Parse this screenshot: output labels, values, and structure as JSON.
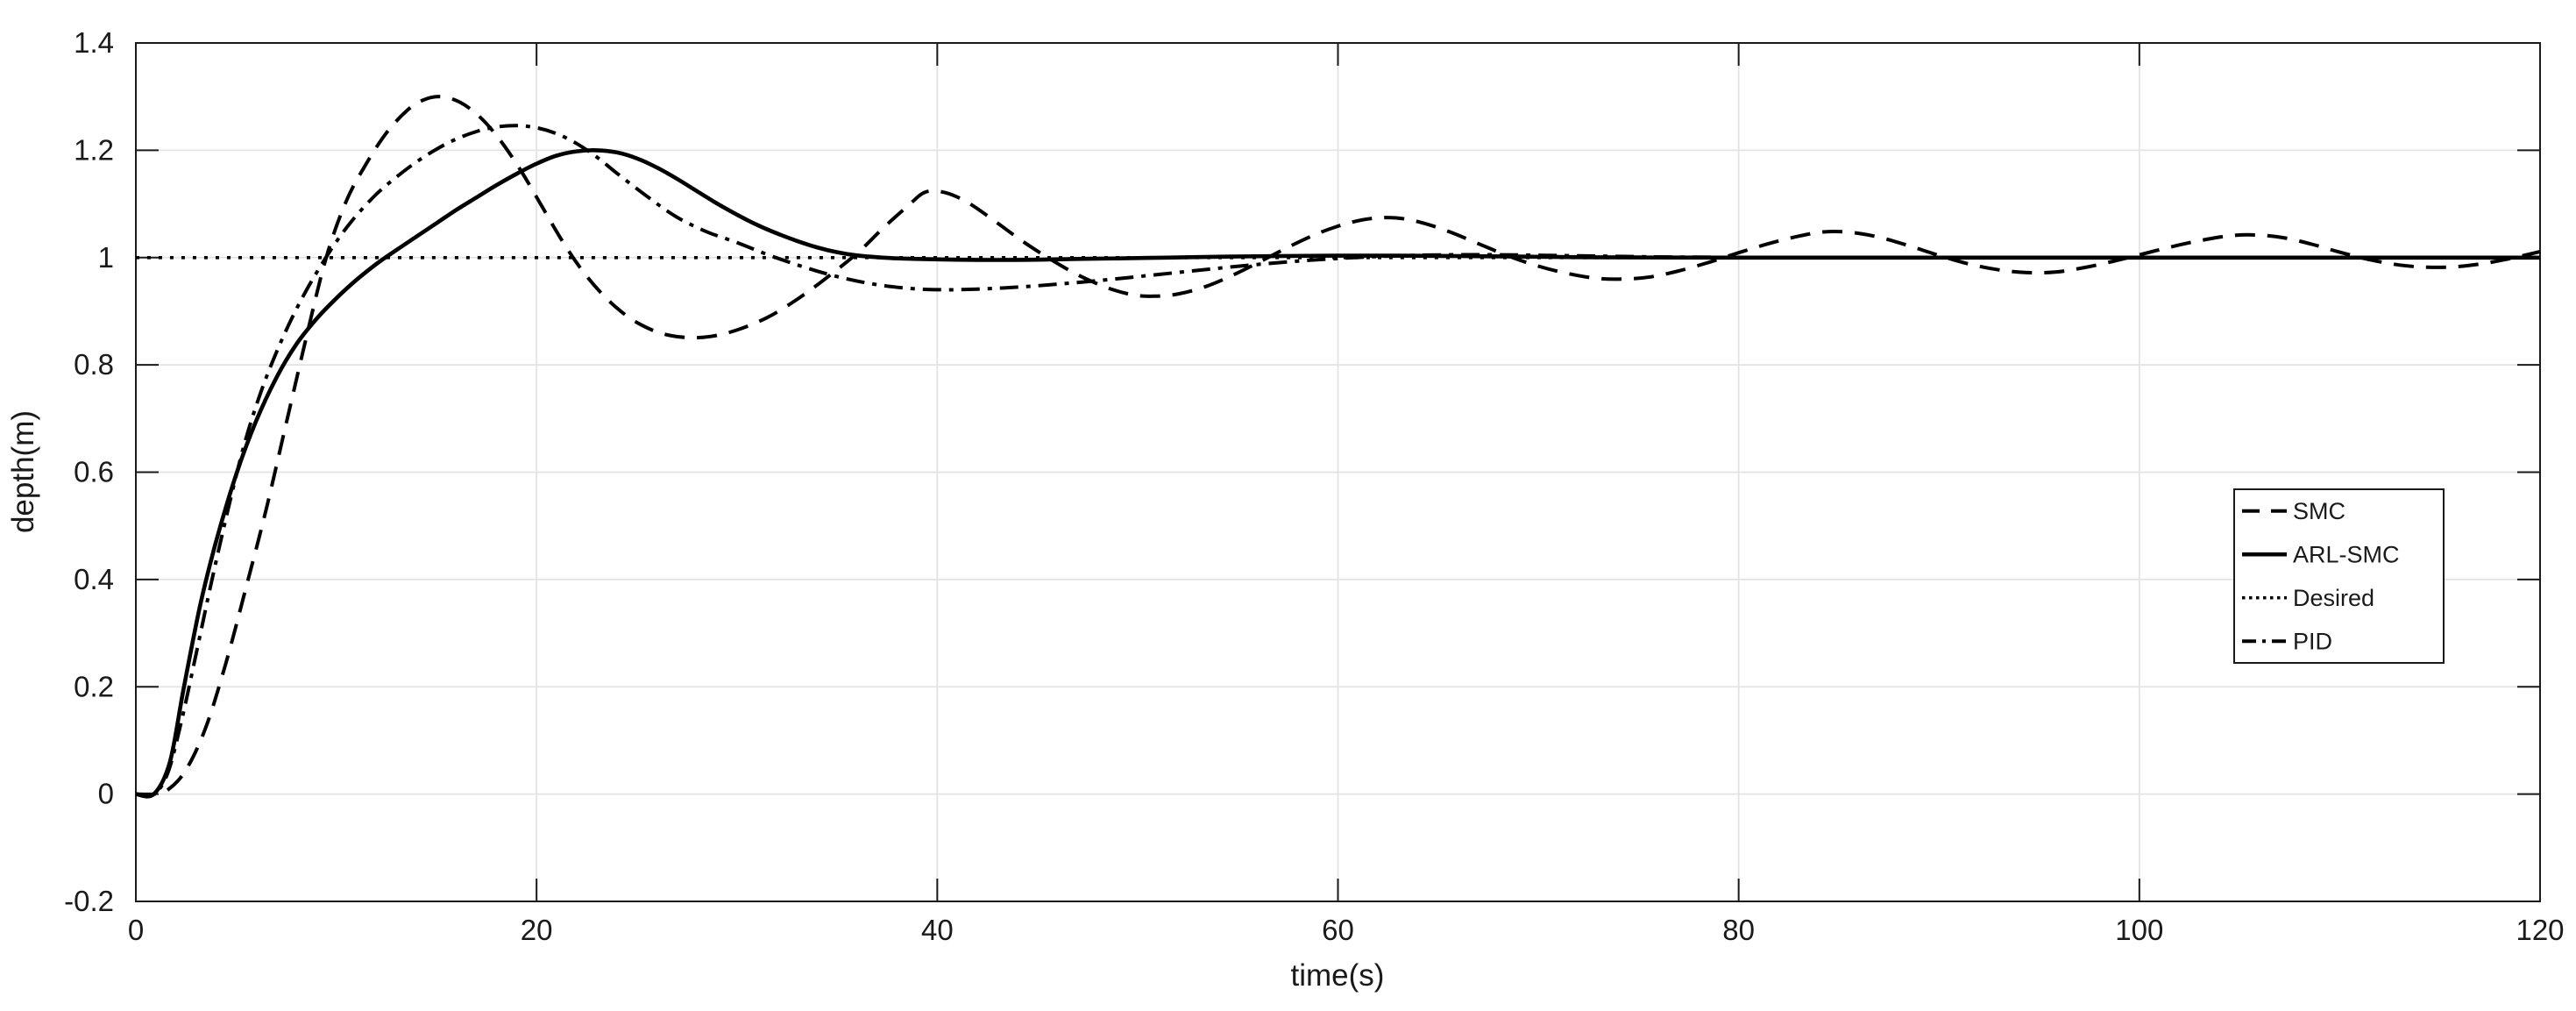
{
  "figure": {
    "background": "#ffffff"
  },
  "colors": {
    "curve": "#000000",
    "grid": "#e3e3e3",
    "axis": "#1a1a1a",
    "tick": "#1a1a1a",
    "label": "#1a1a1a",
    "legend_border": "#1a1a1a",
    "legend_bg": "#ffffff"
  },
  "chart_data": {
    "type": "line",
    "title": "",
    "xlabel": "time(s)",
    "ylabel": "depth(m)",
    "xlim": [
      0,
      120
    ],
    "ylim": [
      -0.2,
      1.4
    ],
    "xticks": [
      0,
      20,
      40,
      60,
      80,
      100,
      120
    ],
    "xtick_labels": [
      "0",
      "20",
      "40",
      "60",
      "80",
      "100",
      "120"
    ],
    "yticks": [
      -0.2,
      0,
      0.2,
      0.4,
      0.6,
      0.8,
      1,
      1.2,
      1.4
    ],
    "ytick_labels": [
      "-0.2",
      "0",
      "0.2",
      "0.4",
      "0.6",
      "0.8",
      "1",
      "1.2",
      "1.4"
    ],
    "grid": true,
    "box": true,
    "legend": {
      "position": "right-center",
      "entries": [
        "SMC",
        "ARL-SMC",
        "Desired",
        "PID"
      ]
    },
    "series": [
      {
        "name": "SMC",
        "line_style": "dashed",
        "color": "#000000",
        "points": [
          [
            0,
            0
          ],
          [
            0.9,
            0
          ],
          [
            1.6,
            0.008
          ],
          [
            2.5,
            0.045
          ],
          [
            3.5,
            0.125
          ],
          [
            4.5,
            0.245
          ],
          [
            5.5,
            0.385
          ],
          [
            6.5,
            0.53
          ],
          [
            7.5,
            0.69
          ],
          [
            8.5,
            0.85
          ],
          [
            9.5,
            1.0
          ],
          [
            10.5,
            1.105
          ],
          [
            11.5,
            1.175
          ],
          [
            12.5,
            1.232
          ],
          [
            13.5,
            1.273
          ],
          [
            14.3,
            1.293
          ],
          [
            15.2,
            1.3
          ],
          [
            16.2,
            1.289
          ],
          [
            17.2,
            1.261
          ],
          [
            18.2,
            1.218
          ],
          [
            19.2,
            1.163
          ],
          [
            20.2,
            1.1
          ],
          [
            21.2,
            1.036
          ],
          [
            22.2,
            0.98
          ],
          [
            23.2,
            0.935
          ],
          [
            24.2,
            0.9
          ],
          [
            25.2,
            0.875
          ],
          [
            26.3,
            0.858
          ],
          [
            27.5,
            0.851
          ],
          [
            28.7,
            0.853
          ],
          [
            30,
            0.865
          ],
          [
            31.5,
            0.888
          ],
          [
            33,
            0.922
          ],
          [
            34.5,
            0.963
          ],
          [
            36,
            1.008
          ],
          [
            37.3,
            1.055
          ],
          [
            38.5,
            1.095
          ],
          [
            39.4,
            1.122
          ],
          [
            40.4,
            1.121
          ],
          [
            41.5,
            1.103
          ],
          [
            42.8,
            1.07
          ],
          [
            44.2,
            1.032
          ],
          [
            45.6,
            0.998
          ],
          [
            47,
            0.968
          ],
          [
            48.4,
            0.945
          ],
          [
            49.7,
            0.931
          ],
          [
            50.8,
            0.928
          ],
          [
            52,
            0.932
          ],
          [
            53.4,
            0.946
          ],
          [
            54.8,
            0.968
          ],
          [
            56.2,
            0.994
          ],
          [
            57.6,
            1.021
          ],
          [
            59,
            1.045
          ],
          [
            60.4,
            1.063
          ],
          [
            61.7,
            1.073
          ],
          [
            62.9,
            1.074
          ],
          [
            64.1,
            1.066
          ],
          [
            65.5,
            1.049
          ],
          [
            67,
            1.026
          ],
          [
            68.5,
            1.003
          ],
          [
            70,
            0.984
          ],
          [
            71.5,
            0.97
          ],
          [
            73,
            0.961
          ],
          [
            74.3,
            0.96
          ],
          [
            75.6,
            0.964
          ],
          [
            77,
            0.975
          ],
          [
            78.5,
            0.991
          ],
          [
            80,
            1.009
          ],
          [
            81.5,
            1.026
          ],
          [
            83,
            1.04
          ],
          [
            84.3,
            1.048
          ],
          [
            85.6,
            1.047
          ],
          [
            87,
            1.038
          ],
          [
            88.5,
            1.022
          ],
          [
            90,
            1.004
          ],
          [
            91.5,
            0.988
          ],
          [
            93,
            0.977
          ],
          [
            94.4,
            0.972
          ],
          [
            95.8,
            0.973
          ],
          [
            97.2,
            0.981
          ],
          [
            98.7,
            0.993
          ],
          [
            100.2,
            1.007
          ],
          [
            101.7,
            1.021
          ],
          [
            103.2,
            1.033
          ],
          [
            104.6,
            1.041
          ],
          [
            105.9,
            1.042
          ],
          [
            107.2,
            1.037
          ],
          [
            108.6,
            1.025
          ],
          [
            110,
            1.01
          ],
          [
            111.5,
            0.996
          ],
          [
            113,
            0.986
          ],
          [
            114.4,
            0.982
          ],
          [
            115.8,
            0.983
          ],
          [
            117.2,
            0.989
          ],
          [
            118.6,
            0.999
          ],
          [
            120,
            1.011
          ]
        ]
      },
      {
        "name": "ARL-SMC",
        "line_style": "solid",
        "color": "#000000",
        "points": [
          [
            0,
            0
          ],
          [
            0.9,
            0
          ],
          [
            1.7,
            0.06
          ],
          [
            2.4,
            0.2
          ],
          [
            3.2,
            0.35
          ],
          [
            4,
            0.47
          ],
          [
            5,
            0.595
          ],
          [
            6,
            0.695
          ],
          [
            7,
            0.775
          ],
          [
            8,
            0.838
          ],
          [
            9,
            0.885
          ],
          [
            10,
            0.924
          ],
          [
            11,
            0.958
          ],
          [
            12,
            0.988
          ],
          [
            13,
            1.014
          ],
          [
            14,
            1.039
          ],
          [
            15,
            1.064
          ],
          [
            16,
            1.089
          ],
          [
            17,
            1.112
          ],
          [
            18,
            1.135
          ],
          [
            19,
            1.156
          ],
          [
            20,
            1.175
          ],
          [
            21,
            1.19
          ],
          [
            22,
            1.198
          ],
          [
            23,
            1.2
          ],
          [
            24,
            1.196
          ],
          [
            25,
            1.185
          ],
          [
            26,
            1.168
          ],
          [
            27,
            1.147
          ],
          [
            28,
            1.124
          ],
          [
            29,
            1.101
          ],
          [
            30,
            1.08
          ],
          [
            31,
            1.061
          ],
          [
            32,
            1.045
          ],
          [
            33,
            1.031
          ],
          [
            34,
            1.019
          ],
          [
            35,
            1.01
          ],
          [
            36,
            1.004
          ],
          [
            37.5,
            0.9995
          ],
          [
            39,
            0.9975
          ],
          [
            41,
            0.996
          ],
          [
            43,
            0.9955
          ],
          [
            45,
            0.996
          ],
          [
            47,
            0.9975
          ],
          [
            49,
            0.9985
          ],
          [
            51.5,
            1.0
          ],
          [
            54,
            1.0015
          ],
          [
            57,
            1.0028
          ],
          [
            60,
            1.0035
          ],
          [
            63,
            1.0035
          ],
          [
            66,
            1.0028
          ],
          [
            69,
            1.0018
          ],
          [
            72,
            1.0008
          ],
          [
            75,
            1.0002
          ],
          [
            80,
            1.0
          ],
          [
            90,
            1.0
          ],
          [
            105,
            1.0
          ],
          [
            120,
            1.0
          ]
        ]
      },
      {
        "name": "Desired",
        "line_style": "dotted",
        "color": "#000000",
        "points": [
          [
            0,
            1
          ],
          [
            60,
            1
          ],
          [
            120,
            1
          ]
        ]
      },
      {
        "name": "PID",
        "line_style": "dashdot",
        "color": "#000000",
        "points": [
          [
            0,
            0
          ],
          [
            0.9,
            0
          ],
          [
            1.6,
            0.04
          ],
          [
            2.3,
            0.14
          ],
          [
            3,
            0.26
          ],
          [
            3.8,
            0.4
          ],
          [
            4.6,
            0.53
          ],
          [
            5.4,
            0.65
          ],
          [
            6.2,
            0.745
          ],
          [
            7,
            0.822
          ],
          [
            7.8,
            0.888
          ],
          [
            8.6,
            0.945
          ],
          [
            9.4,
            0.995
          ],
          [
            10.2,
            1.04
          ],
          [
            11,
            1.078
          ],
          [
            12,
            1.118
          ],
          [
            13,
            1.15
          ],
          [
            14,
            1.178
          ],
          [
            15,
            1.202
          ],
          [
            16,
            1.221
          ],
          [
            17,
            1.235
          ],
          [
            18,
            1.2435
          ],
          [
            19,
            1.246
          ],
          [
            20,
            1.242
          ],
          [
            21,
            1.231
          ],
          [
            22,
            1.2125
          ],
          [
            23,
            1.1875
          ],
          [
            24,
            1.1575
          ],
          [
            25.5,
            1.1145
          ],
          [
            27,
            1.0755
          ],
          [
            28.5,
            1.048
          ],
          [
            30,
            1.028
          ],
          [
            31.5,
            1.006
          ],
          [
            33,
            0.9865
          ],
          [
            34.5,
            0.9695
          ],
          [
            36,
            0.9562
          ],
          [
            37.5,
            0.9468
          ],
          [
            39,
            0.9415
          ],
          [
            40.5,
            0.94
          ],
          [
            42,
            0.9412
          ],
          [
            43.5,
            0.9438
          ],
          [
            45,
            0.9475
          ],
          [
            46.5,
            0.952
          ],
          [
            48,
            0.957
          ],
          [
            49.5,
            0.9625
          ],
          [
            51,
            0.9683
          ],
          [
            52.5,
            0.9742
          ],
          [
            54,
            0.98
          ],
          [
            55.5,
            0.9855
          ],
          [
            57,
            0.9905
          ],
          [
            58.5,
            0.9948
          ],
          [
            60,
            0.9983
          ],
          [
            61.5,
            1.0012
          ],
          [
            63,
            1.0033
          ],
          [
            64.5,
            1.0047
          ],
          [
            66,
            1.0053
          ],
          [
            67.5,
            1.0053
          ],
          [
            69,
            1.0048
          ],
          [
            71,
            1.0038
          ],
          [
            73,
            1.0027
          ],
          [
            75,
            1.0017
          ],
          [
            77,
            1.0009
          ],
          [
            80,
            1.0003
          ],
          [
            84,
            1.0
          ],
          [
            95,
            1.0
          ],
          [
            110,
            1.0
          ],
          [
            120,
            1.0
          ]
        ]
      }
    ]
  }
}
